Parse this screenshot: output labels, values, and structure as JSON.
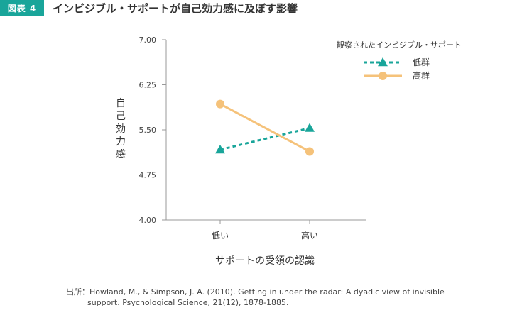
{
  "figure": {
    "badge": "図表 4",
    "title": "インビジブル・サポートが自己効力感に及ぼす影響"
  },
  "source": {
    "prefix": "出所：",
    "line1": "Howland, M., & Simpson, J. A. (2010). Getting in under the radar: A dyadic view of invisible",
    "line2": "support. Psychological Science, 21(12), 1878-1885."
  },
  "colors": {
    "badge": "#19a59a",
    "low_series": "#19a59a",
    "high_series": "#f5c27a",
    "axis": "#999999"
  },
  "chart_data": {
    "type": "line",
    "xlabel": "サポートの受領の認識",
    "ylabel": "自己効力感",
    "categories": [
      "低い",
      "高い"
    ],
    "ylim": [
      4.0,
      7.0
    ],
    "yticks": [
      "7.00",
      "6.25",
      "5.50",
      "4.75",
      "4.00"
    ],
    "legend_title": "観察されたインビジブル・サポート",
    "legend_position": "top-right",
    "grid": false,
    "series": [
      {
        "name": "低群",
        "values": [
          5.17,
          5.53
        ],
        "marker": "triangle",
        "style": "dashed",
        "color": "#19a59a"
      },
      {
        "name": "高群",
        "values": [
          5.93,
          5.14
        ],
        "marker": "circle",
        "style": "solid",
        "color": "#f5c27a"
      }
    ]
  }
}
